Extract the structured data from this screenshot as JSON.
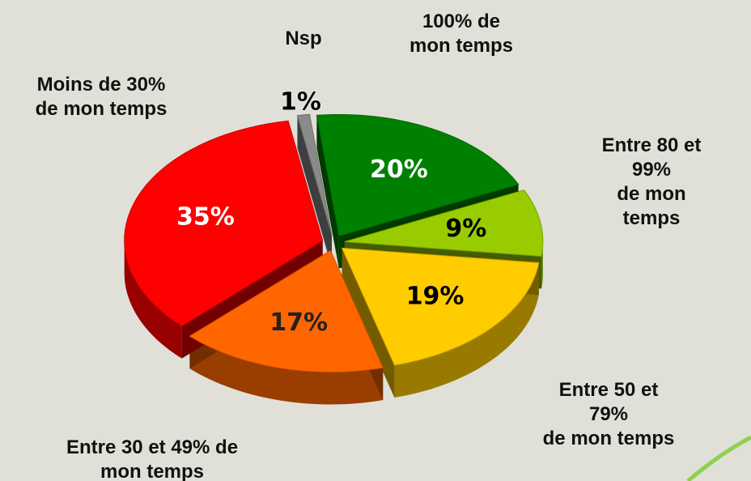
{
  "chart_data": {
    "type": "pie",
    "categories": [
      "Nsp",
      "100% de\nmon temps",
      "Entre 80 et 99%\nde mon temps",
      "Entre 50 et 79%\nde mon temps",
      "Entre 30 et 49% de\nmon temps",
      "Moins de 30%\nde mon temps"
    ],
    "values": [
      1,
      20,
      9,
      19,
      17,
      35
    ],
    "value_labels": [
      "1%",
      "20%",
      "9%",
      "19%",
      "17%",
      "35%"
    ],
    "colors": [
      "#8a8a8a",
      "#008000",
      "#99cc00",
      "#ffcc00",
      "#ff6600",
      "#ff0000"
    ]
  }
}
